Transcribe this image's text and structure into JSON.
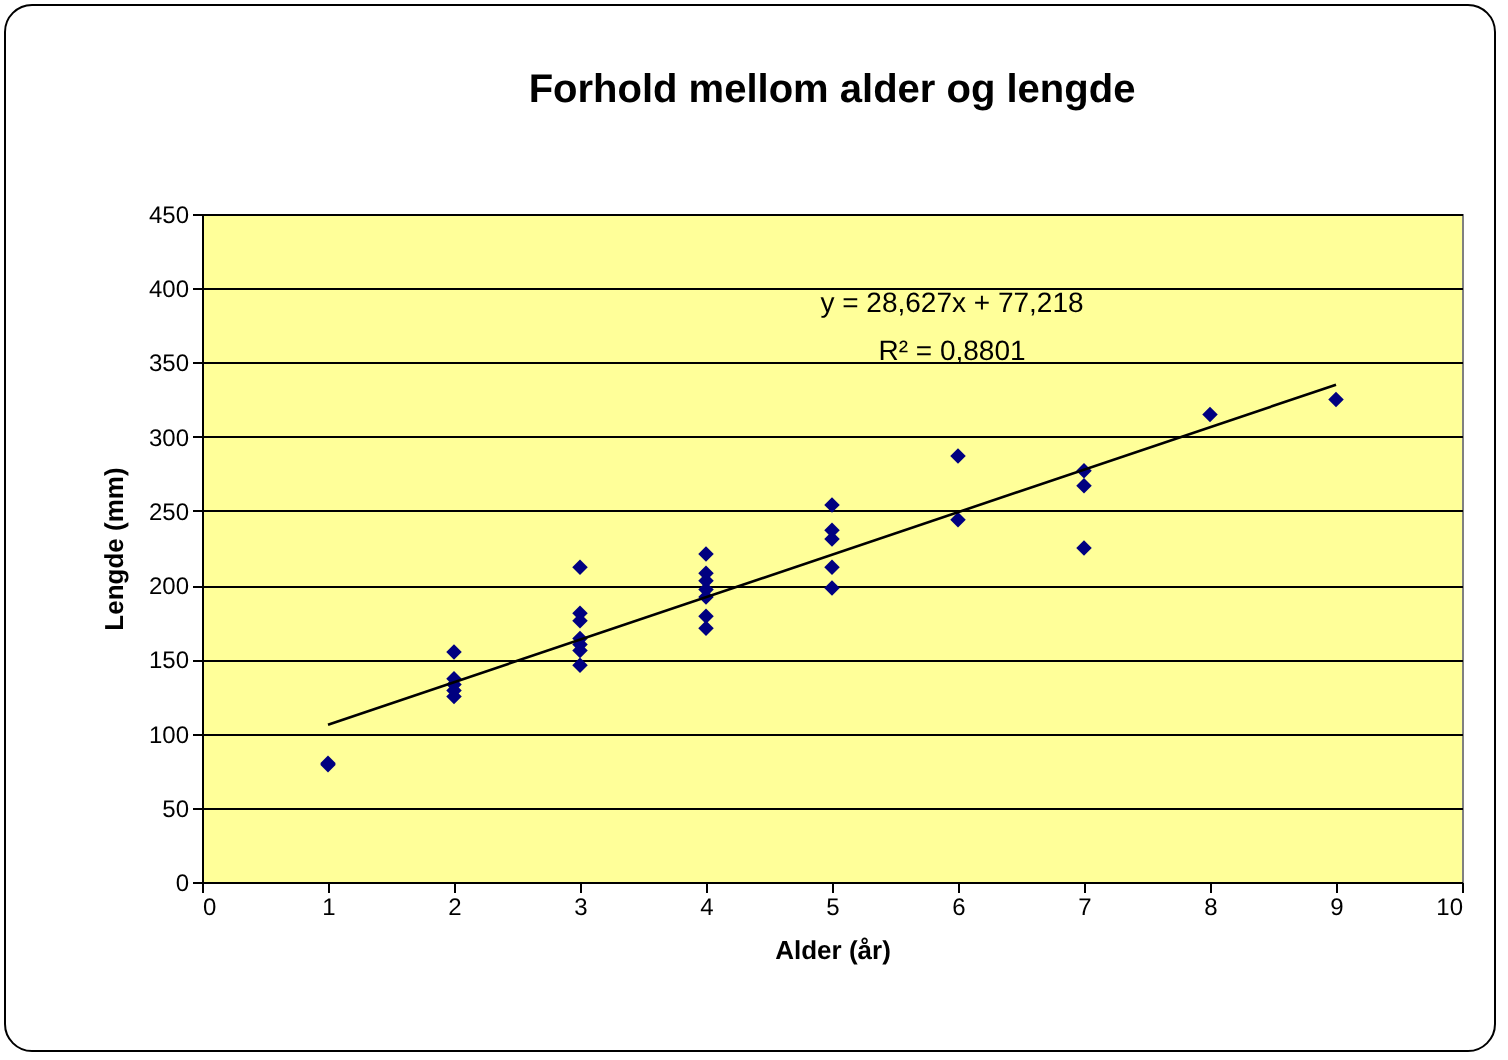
{
  "chart_data": {
    "type": "scatter",
    "title": "Forhold mellom alder og lengde",
    "xlabel": "Alder (år)",
    "ylabel": "Lengde (mm)",
    "xlim": [
      0,
      10
    ],
    "xticks": [
      0,
      1,
      2,
      3,
      4,
      5,
      6,
      7,
      8,
      9,
      10
    ],
    "ylim": [
      0,
      450
    ],
    "yticks": [
      0,
      50,
      100,
      150,
      200,
      250,
      300,
      350,
      400,
      450
    ],
    "grid": "y",
    "legend": false,
    "marker": "diamond",
    "annotations": [
      "y = 28,627x + 77,218",
      "R² = 0,8801"
    ],
    "series": [
      {
        "color": "#000080",
        "x": [
          1,
          1,
          2,
          2,
          2,
          2,
          2,
          3,
          3,
          3,
          3,
          3,
          3,
          3,
          4,
          4,
          4,
          4,
          4,
          4,
          4,
          5,
          5,
          5,
          5,
          5,
          6,
          6,
          7,
          7,
          7,
          8,
          9
        ],
        "values": [
          80,
          79,
          155,
          137,
          133,
          129,
          125,
          212,
          181,
          176,
          164,
          160,
          156,
          146,
          221,
          208,
          203,
          197,
          192,
          179,
          171,
          254,
          237,
          231,
          212,
          198,
          287,
          244,
          277,
          267,
          225,
          315,
          325
        ]
      },
      {
        "type": "line",
        "marker": "none",
        "color": "#000000",
        "x": [
          1,
          9
        ],
        "values": [
          106,
          335
        ]
      }
    ]
  }
}
